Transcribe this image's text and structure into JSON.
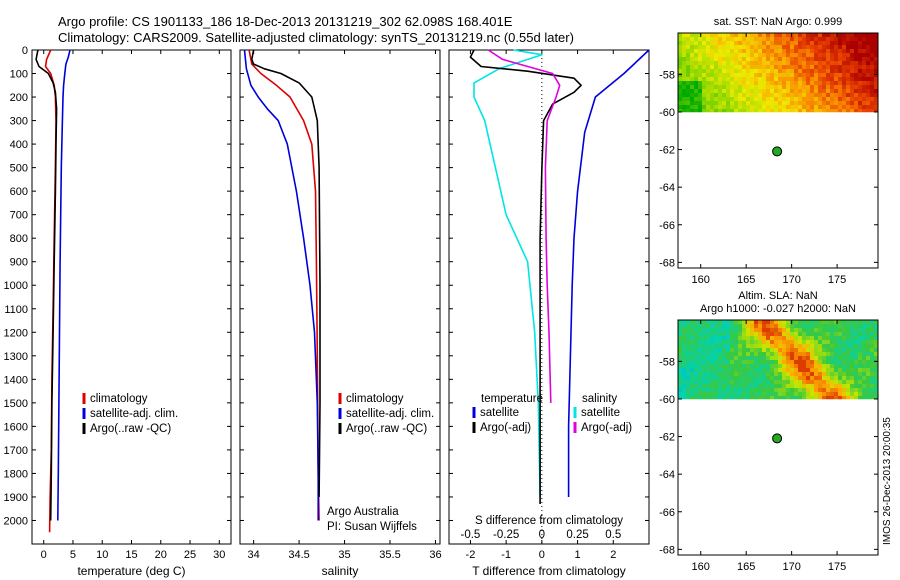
{
  "title_line1": "Argo profile: CS 1901133_186 18-Dec-2013 20131219_302 62.098S 168.401E",
  "title_line2": "Climatology: CARS2009. Satellite-adjusted climatology: synTS_20131219.nc (0.55d later)",
  "side_stamp": "IMOS 26-Dec-2013 20:00:35",
  "colors": {
    "climatology": "#dd0000",
    "satellite": "#0000dd",
    "argo": "#000000",
    "cyan": "#00e5e5",
    "magenta": "#e000e0",
    "marker": "#22aa22"
  },
  "chart_data": [
    {
      "id": "temperature",
      "type": "line",
      "xlabel": "temperature (deg C)",
      "xticks": [
        0,
        5,
        10,
        15,
        20,
        25,
        30
      ],
      "xlim": [
        -2,
        32
      ],
      "ylim": [
        0,
        2100
      ],
      "yticks": [
        0,
        100,
        200,
        300,
        400,
        500,
        600,
        700,
        800,
        900,
        1000,
        1100,
        1200,
        1300,
        1400,
        1500,
        1600,
        1700,
        1800,
        1900,
        2000
      ],
      "legend": [
        "climatology",
        "satellite-adj. clim.",
        "Argo(..raw -QC)"
      ],
      "series": [
        {
          "name": "climatology",
          "color_key": "climatology",
          "points": [
            [
              1.2,
              0
            ],
            [
              0.5,
              40
            ],
            [
              0.3,
              70
            ],
            [
              1.2,
              100
            ],
            [
              1.8,
              150
            ],
            [
              2.0,
              200
            ],
            [
              2.1,
              300
            ],
            [
              2.0,
              500
            ],
            [
              1.8,
              800
            ],
            [
              1.6,
              1100
            ],
            [
              1.4,
              1400
            ],
            [
              1.3,
              1700
            ],
            [
              1.1,
              1900
            ],
            [
              1.0,
              2050
            ]
          ]
        },
        {
          "name": "satellite-adj. clim.",
          "color_key": "satellite",
          "points": [
            [
              4.5,
              0
            ],
            [
              4.2,
              30
            ],
            [
              3.8,
              60
            ],
            [
              3.6,
              100
            ],
            [
              3.4,
              150
            ],
            [
              3.3,
              200
            ],
            [
              3.2,
              300
            ],
            [
              3.0,
              500
            ],
            [
              2.9,
              700
            ],
            [
              2.8,
              900
            ],
            [
              2.7,
              1200
            ],
            [
              2.6,
              1500
            ],
            [
              2.5,
              1800
            ],
            [
              2.4,
              2000
            ]
          ]
        },
        {
          "name": "Argo(..raw -QC)",
          "color_key": "argo",
          "points": [
            [
              -1.0,
              0
            ],
            [
              -1.3,
              40
            ],
            [
              -0.8,
              70
            ],
            [
              0.8,
              100
            ],
            [
              1.6,
              140
            ],
            [
              2.0,
              180
            ],
            [
              2.2,
              250
            ],
            [
              2.1,
              400
            ],
            [
              2.0,
              600
            ],
            [
              1.8,
              900
            ],
            [
              1.6,
              1200
            ],
            [
              1.4,
              1500
            ],
            [
              1.3,
              1800
            ],
            [
              1.2,
              2000
            ]
          ]
        }
      ]
    },
    {
      "id": "salinity",
      "type": "line",
      "xlabel": "salinity",
      "xticks": [
        34,
        34.5,
        35,
        35.5,
        36
      ],
      "xticklabels": [
        "34",
        "34.5",
        "35",
        "35.5",
        "36"
      ],
      "xlim": [
        33.85,
        36.05
      ],
      "ylim": [
        0,
        2100
      ],
      "legend": [
        "climatology",
        "satellite-adj. clim.",
        "Argo(..raw -QC)"
      ],
      "credit_lines": [
        "Argo Australia",
        "PI: Susan Wijffels"
      ],
      "series": [
        {
          "name": "climatology",
          "color_key": "climatology",
          "points": [
            [
              33.95,
              0
            ],
            [
              33.98,
              60
            ],
            [
              34.08,
              100
            ],
            [
              34.25,
              150
            ],
            [
              34.4,
              200
            ],
            [
              34.55,
              300
            ],
            [
              34.64,
              400
            ],
            [
              34.68,
              600
            ],
            [
              34.69,
              900
            ],
            [
              34.7,
              1300
            ],
            [
              34.71,
              1800
            ],
            [
              34.72,
              2000
            ]
          ]
        },
        {
          "name": "satellite-adj. clim.",
          "color_key": "satellite",
          "points": [
            [
              33.9,
              0
            ],
            [
              33.92,
              80
            ],
            [
              33.97,
              150
            ],
            [
              34.05,
              200
            ],
            [
              34.15,
              250
            ],
            [
              34.27,
              300
            ],
            [
              34.37,
              400
            ],
            [
              34.47,
              600
            ],
            [
              34.55,
              800
            ],
            [
              34.62,
              1000
            ],
            [
              34.67,
              1200
            ],
            [
              34.7,
              1500
            ],
            [
              34.71,
              1800
            ],
            [
              34.71,
              2000
            ]
          ]
        },
        {
          "name": "Argo(..raw -QC)",
          "color_key": "argo",
          "points": [
            [
              34.0,
              0
            ],
            [
              33.98,
              40
            ],
            [
              34.0,
              60
            ],
            [
              34.12,
              80
            ],
            [
              34.3,
              100
            ],
            [
              34.5,
              140
            ],
            [
              34.64,
              200
            ],
            [
              34.7,
              300
            ],
            [
              34.72,
              500
            ],
            [
              34.73,
              1000
            ],
            [
              34.73,
              1500
            ],
            [
              34.72,
              1900
            ]
          ]
        }
      ]
    },
    {
      "id": "differences",
      "type": "line",
      "xlabel": "T difference from climatology",
      "top_label": "S difference from climatology",
      "xticks": [
        -2,
        -1,
        0,
        1,
        2
      ],
      "xticklabels": [
        "-2",
        "-1",
        "0",
        "1",
        "2"
      ],
      "sticklabels": [
        "-0.5",
        "-0.25",
        "0",
        "0.25",
        "0.5"
      ],
      "xlim": [
        -2.6,
        3.0
      ],
      "ylim": [
        0,
        2100
      ],
      "legend_temp_title": "temperature",
      "legend_sal_title": "salinity",
      "legend_temp": [
        "satellite",
        "Argo(-adj)"
      ],
      "legend_sal": [
        "satellite",
        "Argo(-adj)"
      ],
      "series": [
        {
          "name": "T satellite",
          "color_key": "cyan",
          "points": [
            [
              -0.8,
              0
            ],
            [
              0.0,
              20
            ],
            [
              -1.2,
              80
            ],
            [
              -1.9,
              140
            ],
            [
              -1.9,
              200
            ],
            [
              -1.6,
              300
            ],
            [
              -1.3,
              500
            ],
            [
              -1.0,
              700
            ],
            [
              -0.4,
              900
            ],
            [
              -0.2,
              1200
            ],
            [
              -0.1,
              1500
            ],
            [
              -0.05,
              1900
            ]
          ]
        },
        {
          "name": "T Argo(-adj)",
          "color_key": "argo",
          "points": [
            [
              -1.9,
              0
            ],
            [
              -2.0,
              30
            ],
            [
              -1.7,
              70
            ],
            [
              -0.4,
              90
            ],
            [
              0.9,
              120
            ],
            [
              1.1,
              150
            ],
            [
              0.9,
              180
            ],
            [
              0.3,
              230
            ],
            [
              0.05,
              300
            ],
            [
              0.0,
              500
            ],
            [
              -0.05,
              800
            ],
            [
              -0.05,
              1500
            ],
            [
              -0.05,
              1800
            ],
            [
              -0.05,
              1930
            ]
          ]
        },
        {
          "name": "S satellite",
          "color_key": "satellite",
          "points": [
            [
              3.0,
              0
            ],
            [
              2.3,
              100
            ],
            [
              1.5,
              200
            ],
            [
              1.2,
              350
            ],
            [
              1.0,
              600
            ],
            [
              0.9,
              800
            ],
            [
              0.85,
              1000
            ],
            [
              0.8,
              1300
            ],
            [
              0.75,
              1600
            ],
            [
              0.75,
              1900
            ]
          ]
        },
        {
          "name": "S Argo(-adj)",
          "color_key": "magenta",
          "points": [
            [
              -1.5,
              0
            ],
            [
              -1.1,
              40
            ],
            [
              0.3,
              100
            ],
            [
              0.5,
              150
            ],
            [
              0.4,
              200
            ],
            [
              0.15,
              300
            ],
            [
              0.1,
              500
            ],
            [
              0.12,
              800
            ],
            [
              0.15,
              1000
            ],
            [
              0.2,
              1200
            ],
            [
              0.25,
              1500
            ]
          ]
        }
      ]
    },
    {
      "id": "sst_map",
      "type": "heatmap",
      "title": "sat. SST: NaN Argo: 0.999",
      "xticks": [
        160,
        165,
        170,
        175
      ],
      "yticks": [
        -58,
        -60,
        -62,
        -64,
        -66,
        -68
      ],
      "xlim": [
        157.5,
        179.5
      ],
      "ylim": [
        -68.3,
        -55.8
      ],
      "argo_lon": 168.401,
      "argo_lat": -62.098
    },
    {
      "id": "sla_map",
      "type": "heatmap",
      "title_line1": "Altim. SLA: NaN",
      "title_line2": "Argo h1000: -0.027 h2000: NaN",
      "xticks": [
        160,
        165,
        170,
        175
      ],
      "yticks": [
        -58,
        -60,
        -62,
        -64,
        -66,
        -68
      ],
      "xlim": [
        157.5,
        179.5
      ],
      "ylim": [
        -68.3,
        -55.8
      ],
      "argo_lon": 168.401,
      "argo_lat": -62.098
    }
  ]
}
